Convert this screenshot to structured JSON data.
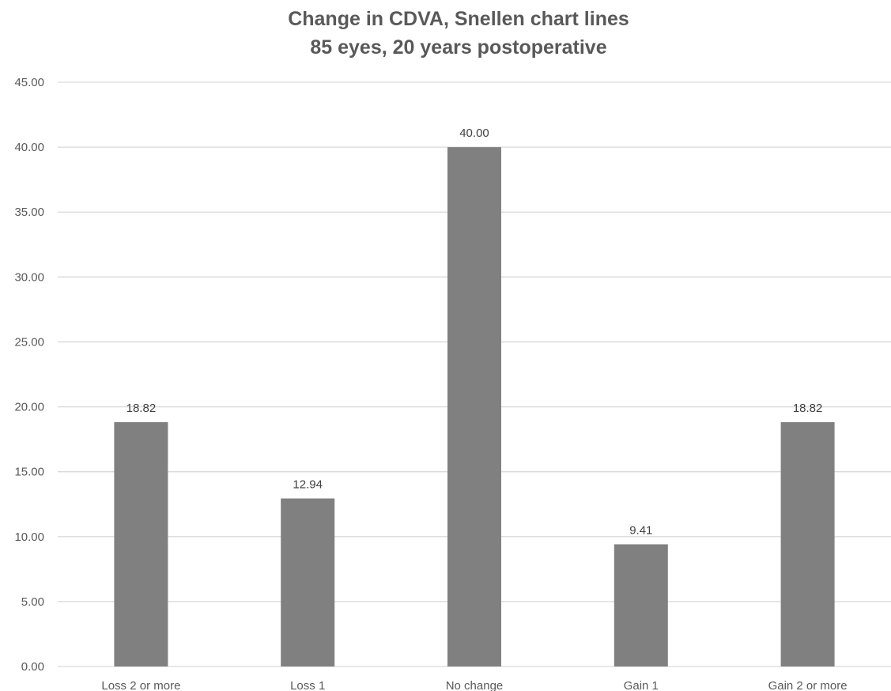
{
  "chart_data": {
    "type": "bar",
    "title": "Change in CDVA, Snellen chart lines",
    "subtitle": "85 eyes, 20 years postoperative",
    "xlabel": "",
    "ylabel": "",
    "categories": [
      "Loss 2 or more",
      "Loss 1",
      "No change",
      "Gain 1",
      "Gain 2 or more"
    ],
    "values": [
      18.82,
      12.94,
      40.0,
      9.41,
      18.82
    ],
    "data_labels": [
      "18.82",
      "12.94",
      "40.00",
      "9.41",
      "18.82"
    ],
    "ylim": [
      0,
      45
    ],
    "yticks": [
      0,
      5,
      10,
      15,
      20,
      25,
      30,
      35,
      40,
      45
    ],
    "ytick_labels": [
      "0.00",
      "5.00",
      "10.00",
      "15.00",
      "20.00",
      "25.00",
      "30.00",
      "35.00",
      "40.00",
      "45.00"
    ],
    "grid": true,
    "legend": "none",
    "colors": {
      "bar": "#808080",
      "grid": "#d9d9d9",
      "text": "#595959",
      "title": "#595959"
    }
  }
}
